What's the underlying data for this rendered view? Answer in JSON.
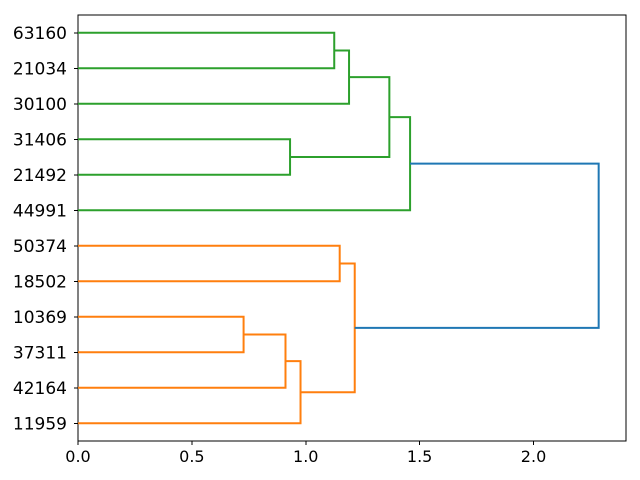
{
  "figure": {
    "background": "#ffffff",
    "title": ""
  },
  "chart_data": {
    "type": "dendrogram",
    "orientation": "left-to-right",
    "title": "",
    "xlabel": "",
    "ylabel": "",
    "grid": false,
    "legend": null,
    "xlim": [
      0,
      2.406
    ],
    "x_tick_values": [
      0,
      0.5,
      1.0,
      1.5,
      2.0
    ],
    "x_tick_labels": [
      "0.0",
      "0.5",
      "1.0",
      "1.5",
      "2.0"
    ],
    "leaves": [
      "63160",
      "21034",
      "30100",
      "31406",
      "21492",
      "44991",
      "50374",
      "18502",
      "10369",
      "37311",
      "42164",
      "11959"
    ],
    "links": [
      {
        "id": "n1",
        "children": [
          "63160",
          "21034"
        ],
        "height": 1.125,
        "color_key": "green"
      },
      {
        "id": "n2",
        "children": [
          "n1",
          "30100"
        ],
        "height": 1.19,
        "color_key": "green"
      },
      {
        "id": "n3",
        "children": [
          "31406",
          "21492"
        ],
        "height": 0.931,
        "color_key": "green"
      },
      {
        "id": "n4",
        "children": [
          "n2",
          "n3"
        ],
        "height": 1.367,
        "color_key": "green"
      },
      {
        "id": "n5",
        "children": [
          "n4",
          "44991"
        ],
        "height": 1.458,
        "color_key": "green"
      },
      {
        "id": "n6",
        "children": [
          "50374",
          "18502"
        ],
        "height": 1.149,
        "color_key": "orange"
      },
      {
        "id": "n7",
        "children": [
          "10369",
          "37311"
        ],
        "height": 0.727,
        "color_key": "orange"
      },
      {
        "id": "n8",
        "children": [
          "n7",
          "42164"
        ],
        "height": 0.911,
        "color_key": "orange"
      },
      {
        "id": "n9",
        "children": [
          "n8",
          "11959"
        ],
        "height": 0.977,
        "color_key": "orange"
      },
      {
        "id": "n10",
        "children": [
          "n6",
          "n9"
        ],
        "height": 1.215,
        "color_key": "orange"
      },
      {
        "id": "n11",
        "children": [
          "n5",
          "n10"
        ],
        "height": 2.286,
        "color_key": "blue"
      }
    ],
    "colors": {
      "green": "#2ca02c",
      "orange": "#ff7f0e",
      "blue": "#1f77b4",
      "frame": "#000000",
      "text": "#000000"
    }
  }
}
